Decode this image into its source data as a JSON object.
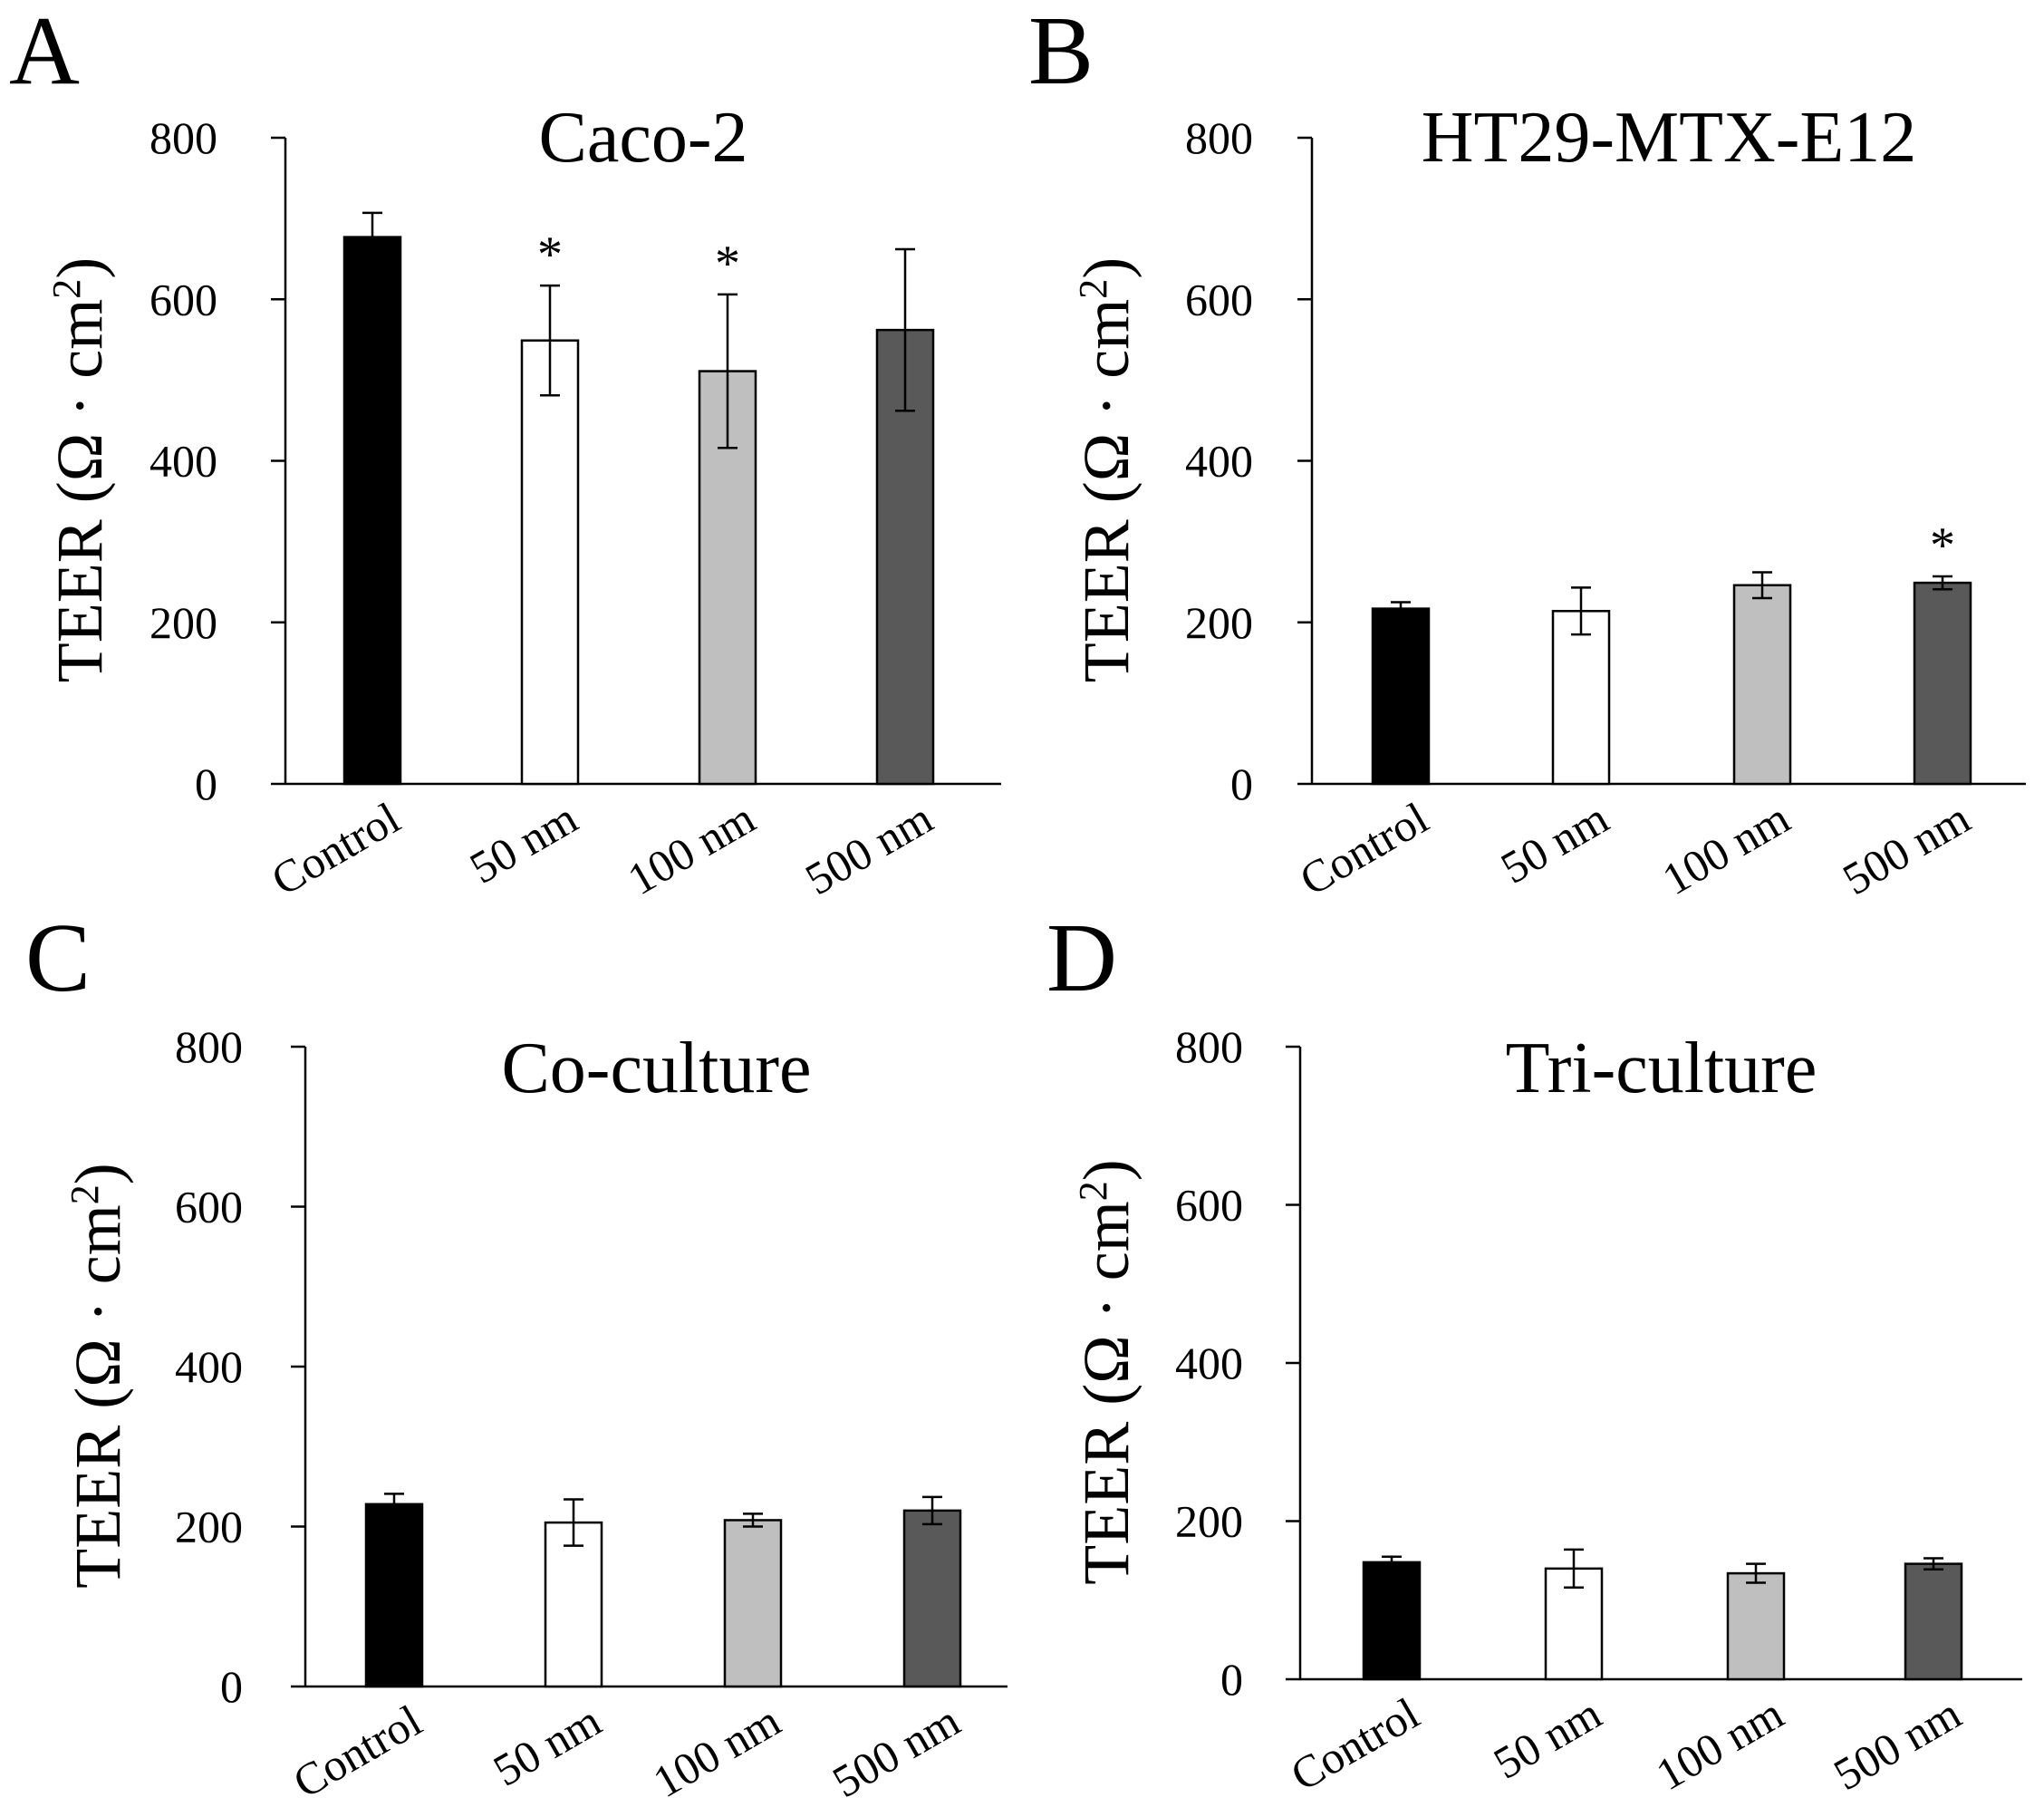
{
  "figure": {
    "colors": {
      "axis": "#000000",
      "error_bar": "#000000",
      "bar_outline": "#000000"
    }
  },
  "chart_data": [
    {
      "panel": "A",
      "type": "bar",
      "title": "Caco-2",
      "xlabel": "",
      "ylabel_main": "TEER (Ω · cm",
      "ylabel_sup": "2",
      "ylabel_close": ")",
      "ylim": [
        0,
        800
      ],
      "yticks": [
        0,
        200,
        400,
        600,
        800
      ],
      "categories": [
        "Control",
        "50 nm",
        "100 nm",
        "500 nm"
      ],
      "colors": [
        "#000000",
        "#ffffff",
        "#bfbfbf",
        "#595959"
      ],
      "values": [
        677,
        549,
        511,
        562
      ],
      "errors": [
        30,
        68,
        95,
        100
      ],
      "significance": [
        "",
        "*",
        "*",
        ""
      ]
    },
    {
      "panel": "B",
      "type": "bar",
      "title": "HT29-MTX-E12",
      "xlabel": "",
      "ylabel_main": "TEER (Ω · cm",
      "ylabel_sup": "2",
      "ylabel_close": ")",
      "ylim": [
        0,
        800
      ],
      "yticks": [
        0,
        200,
        400,
        600,
        800
      ],
      "categories": [
        "Control",
        "50 nm",
        "100 nm",
        "500 nm"
      ],
      "colors": [
        "#000000",
        "#ffffff",
        "#bfbfbf",
        "#595959"
      ],
      "values": [
        217,
        214,
        246,
        249
      ],
      "errors": [
        8,
        29,
        16,
        8
      ],
      "significance": [
        "",
        "",
        "",
        "*"
      ]
    },
    {
      "panel": "C",
      "type": "bar",
      "title": "Co-culture",
      "xlabel": "",
      "ylabel_main": "TEER (Ω · cm",
      "ylabel_sup": "2",
      "ylabel_close": ")",
      "ylim": [
        0,
        800
      ],
      "yticks": [
        0,
        200,
        400,
        600,
        800
      ],
      "categories": [
        "Control",
        "50 nm",
        "100 nm",
        "500 nm"
      ],
      "colors": [
        "#000000",
        "#ffffff",
        "#bfbfbf",
        "#595959"
      ],
      "values": [
        228,
        205,
        208,
        220
      ],
      "errors": [
        13,
        29,
        8,
        17
      ],
      "significance": [
        "",
        "",
        "",
        ""
      ]
    },
    {
      "panel": "D",
      "type": "bar",
      "title": "Tri-culture",
      "xlabel": "",
      "ylabel_main": "TEER (Ω · cm",
      "ylabel_sup": "2",
      "ylabel_close": ")",
      "ylim": [
        0,
        800
      ],
      "yticks": [
        0,
        200,
        400,
        600,
        800
      ],
      "categories": [
        "Control",
        "50 nm",
        "100 nm",
        "500 nm"
      ],
      "colors": [
        "#000000",
        "#ffffff",
        "#bfbfbf",
        "#595959"
      ],
      "values": [
        148,
        140,
        134,
        146
      ],
      "errors": [
        7,
        24,
        12,
        7
      ],
      "significance": [
        "",
        "",
        "",
        ""
      ]
    }
  ]
}
